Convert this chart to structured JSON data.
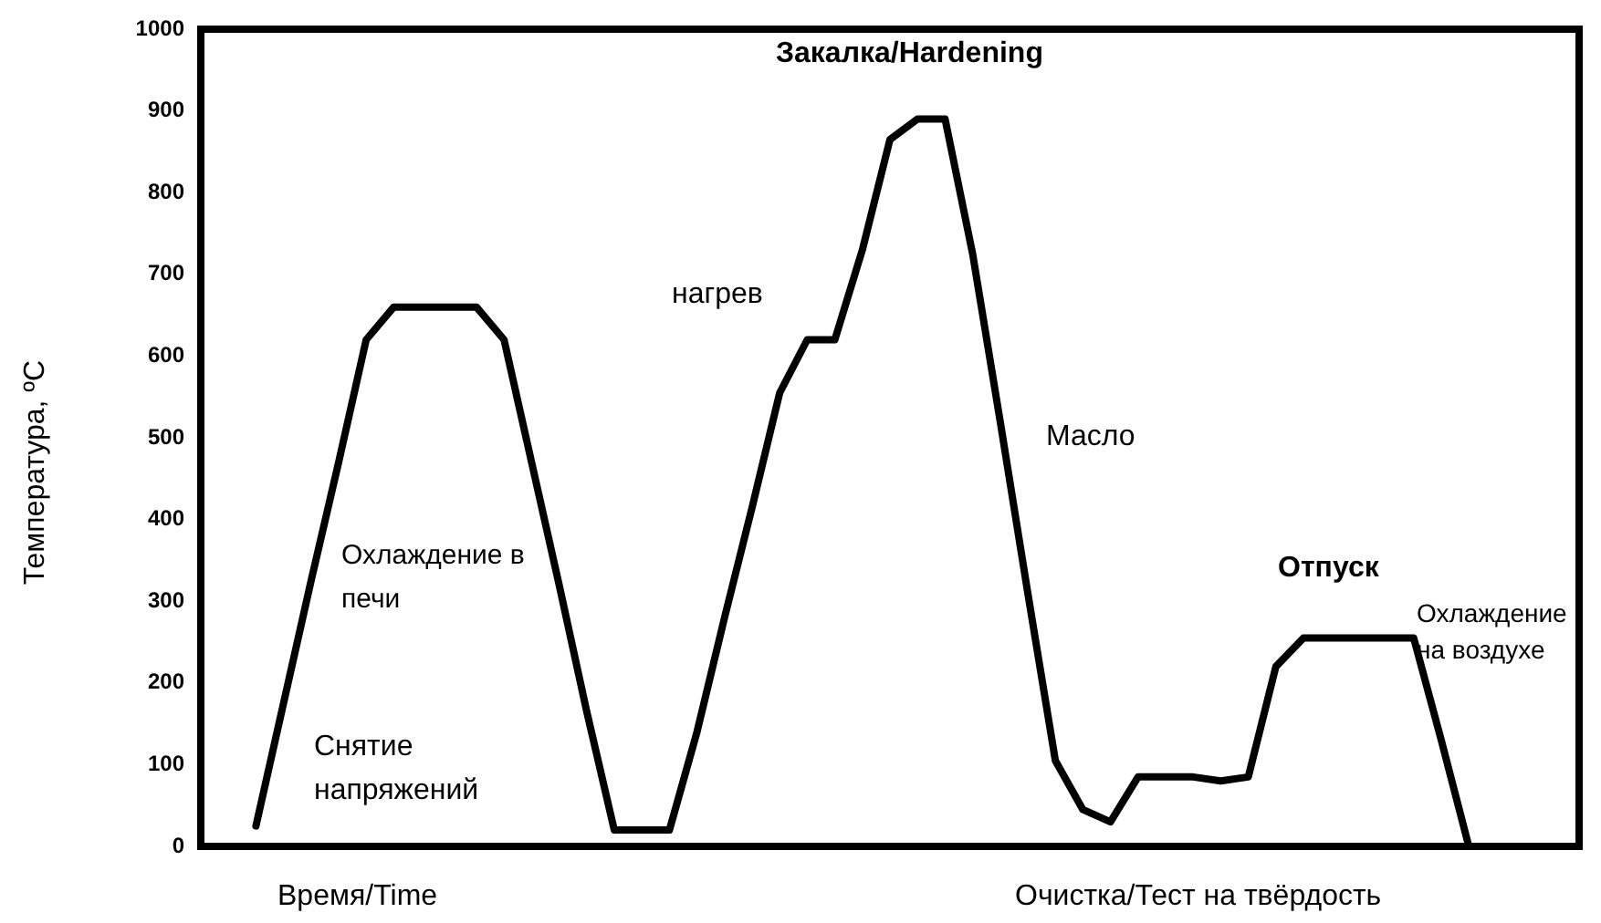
{
  "chart_data": {
    "type": "line",
    "xlabel": "Время/Time",
    "ylabel": "Температура, ºC",
    "annotations": [
      "Закалка/Hardening",
      "нагрев",
      "Масло",
      "Охлаждение в печи",
      "Снятие напряжений",
      "Отпуск",
      "Охлаждение на воздухе",
      "Очистка/Тест на твёрдость"
    ],
    "categories": [
      null,
      null,
      null,
      null,
      null,
      null,
      null,
      null,
      null,
      null,
      null,
      null,
      null,
      null,
      null,
      null,
      null,
      null,
      null,
      null,
      null,
      null,
      null,
      null,
      null,
      null,
      null,
      null,
      null,
      null,
      null,
      null,
      null,
      null,
      null,
      null,
      null,
      null,
      null,
      null,
      null,
      null,
      null,
      null,
      null,
      null,
      null,
      null,
      null,
      null,
      null
    ],
    "series": [
      {
        "color": "#000000",
        "values": [
          null,
          null,
          25,
          175,
          325,
          470,
          620,
          660,
          660,
          660,
          660,
          620,
          470,
          320,
          165,
          20,
          20,
          20,
          140,
          280,
          415,
          555,
          620,
          620,
          730,
          865,
          890,
          890,
          725,
          520,
          310,
          105,
          45,
          30,
          85,
          85,
          85,
          80,
          85,
          220,
          255,
          255,
          255,
          255,
          255,
          130,
          0,
          null,
          null,
          null,
          null
        ]
      }
    ],
    "ylim": [
      0,
      1000
    ],
    "yticks": [
      0,
      100,
      200,
      300,
      400,
      500,
      600,
      700,
      800,
      900,
      1000
    ],
    "grid": false
  }
}
